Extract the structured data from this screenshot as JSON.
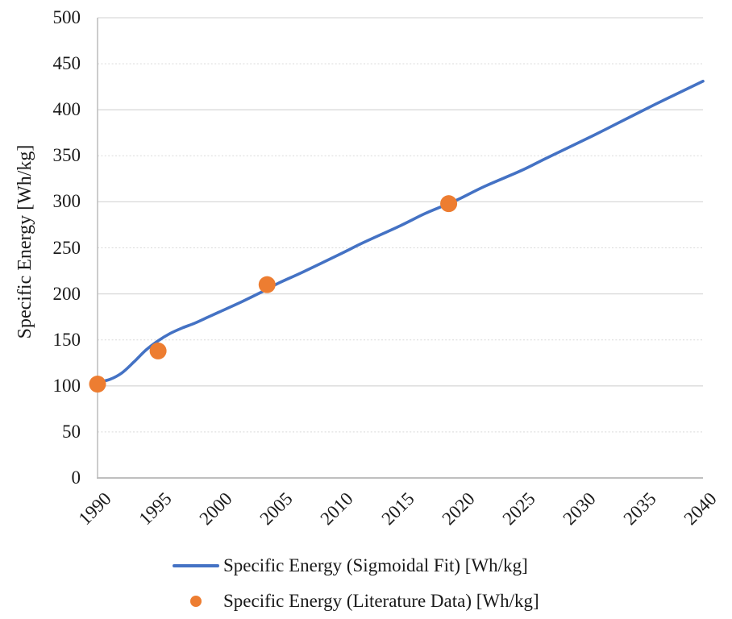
{
  "chart_data": {
    "type": "line",
    "title": "",
    "ylabel": "Specific Energy [Wh/kg]",
    "xlabel": "",
    "ylim": [
      0,
      500
    ],
    "xlim": [
      1990,
      2040
    ],
    "y_ticks": [
      0,
      50,
      100,
      150,
      200,
      250,
      300,
      350,
      400,
      450,
      500
    ],
    "x_ticks": [
      1990,
      1995,
      2000,
      2005,
      2010,
      2015,
      2020,
      2025,
      2030,
      2035,
      2040
    ],
    "grid": {
      "horizontal": true,
      "solid_interval": 100,
      "dashed_interval": 50
    },
    "legend_position": "bottom-center",
    "series": [
      {
        "name": "Specific Energy (Sigmoidal Fit) [Wh/kg]",
        "type": "line",
        "color": "#4472C4",
        "points": [
          [
            1990,
            104
          ],
          [
            1991,
            107
          ],
          [
            1992,
            114
          ],
          [
            1993,
            126
          ],
          [
            1994,
            139
          ],
          [
            1995,
            149
          ],
          [
            1996,
            157
          ],
          [
            1997,
            163
          ],
          [
            1998,
            168
          ],
          [
            1999,
            174
          ],
          [
            2000,
            180
          ],
          [
            2002,
            192
          ],
          [
            2004,
            205
          ],
          [
            2005,
            212
          ],
          [
            2007,
            224
          ],
          [
            2010,
            243
          ],
          [
            2012,
            256
          ],
          [
            2015,
            274
          ],
          [
            2017,
            287
          ],
          [
            2019,
            298
          ],
          [
            2020,
            304
          ],
          [
            2022,
            317
          ],
          [
            2025,
            334
          ],
          [
            2027,
            347
          ],
          [
            2030,
            366
          ],
          [
            2032,
            379
          ],
          [
            2035,
            399
          ],
          [
            2037,
            412
          ],
          [
            2040,
            431
          ]
        ]
      },
      {
        "name": "Specific Energy (Literature Data) [Wh/kg]",
        "type": "scatter",
        "color": "#ED7D31",
        "points": [
          [
            1990,
            102
          ],
          [
            1995,
            138
          ],
          [
            2004,
            210
          ],
          [
            2019,
            298
          ]
        ]
      }
    ]
  },
  "legend": {
    "items": [
      {
        "label": "Specific Energy (Sigmoidal Fit) [Wh/kg]",
        "marker": "line",
        "color": "#4472C4"
      },
      {
        "label": "Specific Energy (Literature Data) [Wh/kg]",
        "marker": "circle",
        "color": "#ED7D31"
      }
    ]
  },
  "colors": {
    "background": "#FFFFFF",
    "grid": "#D9D9D9",
    "axis": "#BFBFBF",
    "text": "#1A1A1A",
    "fit_line": "#4472C4",
    "data_marker": "#ED7D31"
  }
}
